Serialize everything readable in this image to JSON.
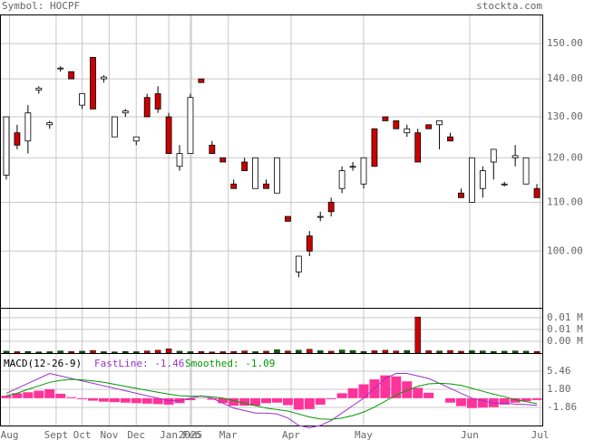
{
  "header": {
    "symbol": "Symbol: HOCPF",
    "site": "stockta.com"
  },
  "chart_data": [
    {
      "type": "candlestick",
      "log": true,
      "grid": true,
      "xlim": [
        -0.5,
        49.5
      ],
      "ylim": [
        89.5,
        158.5
      ],
      "up_color": "#ffffff",
      "down_color": "#cc0000",
      "yticks": [
        {
          "value": 100,
          "label": "100.00"
        },
        {
          "value": 110,
          "label": "110.00"
        },
        {
          "value": 120,
          "label": "120.00"
        },
        {
          "value": 130,
          "label": "130.00"
        },
        {
          "value": 140,
          "label": "140.00"
        },
        {
          "value": 150,
          "label": "150.00"
        }
      ],
      "open": [
        116,
        126,
        124,
        137,
        128,
        143,
        142,
        133,
        146,
        140,
        125,
        131,
        124,
        135,
        136,
        130,
        118,
        121,
        140,
        123,
        120,
        114,
        119,
        113,
        114,
        112,
        107,
        96,
        103,
        107,
        110,
        113,
        118,
        114,
        127,
        130,
        129,
        126,
        126,
        128,
        128,
        125,
        112,
        110,
        113,
        119,
        114,
        120,
        114,
        113
      ],
      "high": [
        130,
        128,
        133,
        138,
        129,
        143.5,
        142,
        136,
        146,
        141,
        130,
        132,
        125,
        136,
        138,
        131,
        123,
        136,
        140,
        124,
        120,
        115,
        120,
        120,
        115,
        120,
        107,
        99,
        104,
        108,
        111,
        118,
        119,
        120,
        127,
        130,
        129,
        128,
        127,
        128,
        129,
        126,
        113,
        120,
        118,
        122,
        114.5,
        123,
        120,
        114
      ],
      "low": [
        115,
        122,
        121,
        136,
        127,
        142,
        140,
        132,
        132,
        139,
        125,
        130,
        123,
        130,
        131,
        121,
        117,
        121,
        139,
        121,
        119,
        113,
        117,
        113,
        113,
        112,
        106,
        95,
        99,
        106,
        107,
        112,
        117,
        113,
        118,
        129,
        127,
        125,
        119,
        127,
        122,
        124,
        111,
        110,
        111,
        115,
        113.5,
        118,
        114,
        111
      ],
      "close": [
        130,
        123,
        131,
        137.5,
        128.5,
        143,
        140,
        136,
        132,
        140.5,
        130,
        131.5,
        125,
        130,
        132,
        121,
        121,
        135,
        139,
        121,
        119,
        113,
        117,
        120,
        113,
        120,
        106,
        99,
        100,
        107,
        108,
        117,
        118,
        120,
        118,
        129,
        127,
        127,
        119,
        127,
        129,
        124,
        111,
        120,
        117,
        122,
        114,
        120.5,
        120,
        111
      ]
    },
    {
      "type": "bar",
      "grid": true,
      "ylim": [
        0,
        0.0188
      ],
      "yticks": [
        {
          "value": 0.005,
          "label": "0.00 M"
        },
        {
          "value": 0.01,
          "label": "0.01 M"
        },
        {
          "value": 0.015,
          "label": "0.01 M"
        }
      ],
      "values": [
        0.0008,
        0.0006,
        0.0007,
        0.0005,
        0.0006,
        0.0009,
        0.0007,
        0.0008,
        0.0011,
        0.0006,
        0.0005,
        0.0007,
        0.0006,
        0.0009,
        0.0012,
        0.0018,
        0.0008,
        0.0006,
        0.0007,
        0.0005,
        0.0006,
        0.0007,
        0.0009,
        0.0006,
        0.0008,
        0.0014,
        0.0009,
        0.0012,
        0.0016,
        0.001,
        0.0008,
        0.0013,
        0.0011,
        0.0007,
        0.001,
        0.0012,
        0.0009,
        0.0011,
        0.0153,
        0.001,
        0.0009,
        0.0011,
        0.0008,
        0.001,
        0.0009,
        0.0007,
        0.0008,
        0.0009,
        0.0008,
        0.0007
      ]
    },
    {
      "type": "macd",
      "title": "MACD(12-26-9)",
      "grid": true,
      "xlim": [
        -0.5,
        49.5
      ],
      "ylim": [
        -5.52,
        8.93
      ],
      "yticks": [
        -1.86,
        {
          "value": 1.8,
          "label": "1.80"
        },
        5.46
      ],
      "xticks": [
        {
          "value": 0.3,
          "label": "Aug"
        },
        {
          "value": 4.6,
          "label": "Sept"
        },
        {
          "value": 7,
          "label": "Oct"
        },
        {
          "value": 9.5,
          "label": "Nov"
        },
        {
          "value": 12,
          "label": "Dec"
        },
        {
          "value": 15,
          "label": "Jan"
        },
        {
          "value": 17,
          "label": "2025"
        },
        {
          "value": 17.1,
          "label": "Feb"
        },
        {
          "value": 20.5,
          "label": "Mar"
        },
        {
          "value": 26.3,
          "label": "Apr"
        },
        {
          "value": 33,
          "label": "May"
        },
        {
          "value": 42.8,
          "label": "Jun"
        },
        {
          "value": 49.3,
          "label": "Jul"
        }
      ],
      "series": [
        {
          "name": "FastLine: -1.46",
          "color": "#9933cc",
          "values": [
            1,
            2,
            3,
            4,
            5,
            4.5,
            4,
            3.5,
            3,
            2.5,
            2,
            1.5,
            1,
            0.5,
            0,
            -0.5,
            -0.5,
            0,
            0.5,
            0,
            -1,
            -2,
            -2.5,
            -3,
            -3,
            -3.2,
            -4,
            -5.5,
            -6,
            -5.5,
            -4.5,
            -3,
            -1.5,
            0,
            2,
            4,
            5,
            5,
            4.5,
            4,
            3,
            2,
            1,
            0,
            -0.5,
            -1,
            -1,
            -1.2,
            -1.3,
            -1.46
          ]
        },
        {
          "name": "Smoothed: -1.09",
          "color": "#009900",
          "values": [
            0.5,
            1,
            1.8,
            2.5,
            3.2,
            3.6,
            3.8,
            3.7,
            3.5,
            3.2,
            2.8,
            2.4,
            2,
            1.6,
            1.2,
            0.8,
            0.5,
            0.4,
            0.4,
            0.3,
            0,
            -0.5,
            -1,
            -1.5,
            -2,
            -2.3,
            -2.6,
            -3.2,
            -3.8,
            -4.2,
            -4.3,
            -4,
            -3.5,
            -2.8,
            -1.8,
            -0.6,
            0.6,
            1.6,
            2.4,
            2.9,
            3,
            2.9,
            2.6,
            2,
            1.4,
            0.8,
            0.3,
            -0.3,
            -0.7,
            -1.09
          ]
        }
      ],
      "histogram": {
        "color": "#ff3399",
        "values": [
          0.5,
          1,
          1.2,
          1.5,
          1.8,
          0.9,
          0.2,
          -0.2,
          -0.5,
          -0.7,
          -0.8,
          -0.9,
          -1,
          -1.1,
          -1.2,
          -1.3,
          -1,
          -0.4,
          0.1,
          -0.3,
          -1,
          -1.5,
          -1.5,
          -1.5,
          -1,
          -0.9,
          -1.4,
          -2.3,
          -2.2,
          -1.3,
          -0.2,
          1,
          2,
          2.8,
          3.8,
          4.6,
          4.4,
          3.4,
          2.1,
          1.1,
          0,
          -0.9,
          -1.6,
          -2,
          -1.9,
          -1.8,
          -1.3,
          -0.9,
          -0.6,
          -0.37
        ]
      }
    }
  ]
}
